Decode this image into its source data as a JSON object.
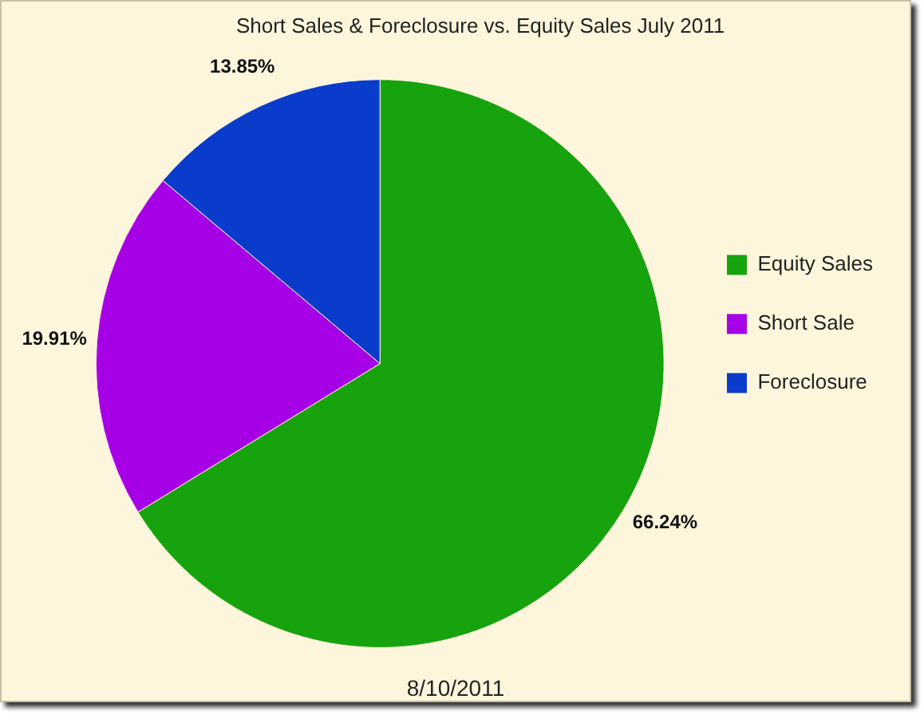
{
  "chart_data": {
    "type": "pie",
    "title": "Short Sales & Foreclosure vs. Equity Sales July 2011",
    "categories": [
      "Equity Sales",
      "Short Sale",
      "Foreclosure"
    ],
    "values": [
      66.24,
      19.91,
      13.85
    ],
    "colors": [
      "#17a30e",
      "#a600e6",
      "#0a3ccc"
    ],
    "value_labels": [
      "66.24%",
      "19.91%",
      "13.85%"
    ],
    "legend": "right",
    "annotations": [
      "8/10/2011"
    ]
  }
}
